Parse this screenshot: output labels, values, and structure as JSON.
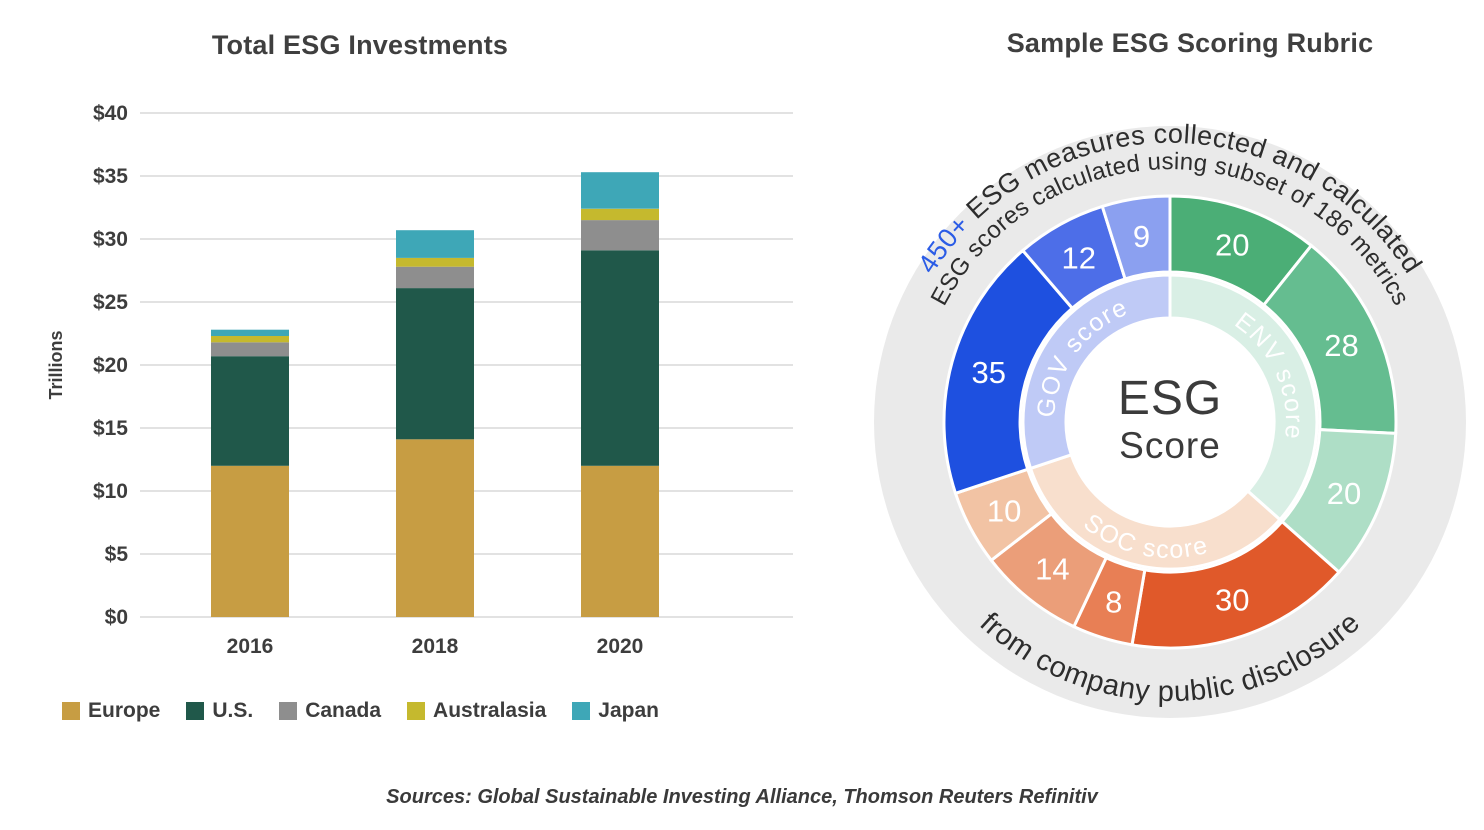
{
  "page": {
    "background": "#ffffff"
  },
  "left_chart": {
    "title": "Total ESG Investments"
  },
  "right_chart": {
    "title": "Sample ESG Scoring Rubric"
  },
  "sources": "Sources: Global Sustainable Investing Alliance, Thomson Reuters Refinitiv",
  "chart_data": [
    {
      "type": "bar",
      "stacked": true,
      "title": "Total ESG Investments",
      "xlabel": "",
      "ylabel": "Trillions",
      "ylim": [
        0,
        40
      ],
      "ytick_step": 5,
      "ytick_prefix": "$",
      "grid": true,
      "legend_position": "bottom",
      "categories": [
        "2016",
        "2018",
        "2020"
      ],
      "series": [
        {
          "name": "Europe",
          "color": "#c79d43",
          "values": [
            12.0,
            14.1,
            12.0
          ]
        },
        {
          "name": "U.S.",
          "color": "#20584a",
          "values": [
            8.7,
            12.0,
            17.1
          ]
        },
        {
          "name": "Canada",
          "color": "#8e8e8e",
          "values": [
            1.1,
            1.7,
            2.4
          ]
        },
        {
          "name": "Australasia",
          "color": "#c5b92e",
          "values": [
            0.5,
            0.7,
            0.9
          ]
        },
        {
          "name": "Japan",
          "color": "#3ea7b7",
          "values": [
            0.5,
            2.2,
            2.9
          ]
        }
      ]
    },
    {
      "type": "pie",
      "variant": "donut",
      "title": "Sample ESG Scoring Rubric",
      "direction": "clockwise",
      "start_angle_deg": 0,
      "total": 186,
      "center_lines": [
        "ESG",
        "Score"
      ],
      "backdrop_color": "#eaeaea",
      "groups": [
        {
          "name": "ENV score",
          "band_color": "#d9efe5",
          "segments": [
            {
              "value": 20,
              "color": "#4bae76"
            },
            {
              "value": 28,
              "color": "#65bd90"
            },
            {
              "value": 20,
              "color": "#aedec6"
            }
          ]
        },
        {
          "name": "SOC score",
          "band_color": "#f8dfcd",
          "segments": [
            {
              "value": 30,
              "color": "#e0592a"
            },
            {
              "value": 8,
              "color": "#e87f55"
            },
            {
              "value": 14,
              "color": "#eb9e79"
            },
            {
              "value": 10,
              "color": "#f2c3a4"
            }
          ]
        },
        {
          "name": "GOV score",
          "band_color": "#bfcaf6",
          "segments": [
            {
              "value": 35,
              "color": "#1e50e0"
            },
            {
              "value": 12,
              "color": "#4d6ee8"
            },
            {
              "value": 9,
              "color": "#8ba0f0"
            }
          ]
        }
      ],
      "annotations": {
        "outer_highlight": "450+",
        "outer_highlight_color": "#2b5ce6",
        "outer_text": " ESG measures collected and calculated",
        "middle_text": "ESG scores calculated using subset of 186 metrics",
        "bottom_text": "from company public disclosure"
      }
    }
  ]
}
